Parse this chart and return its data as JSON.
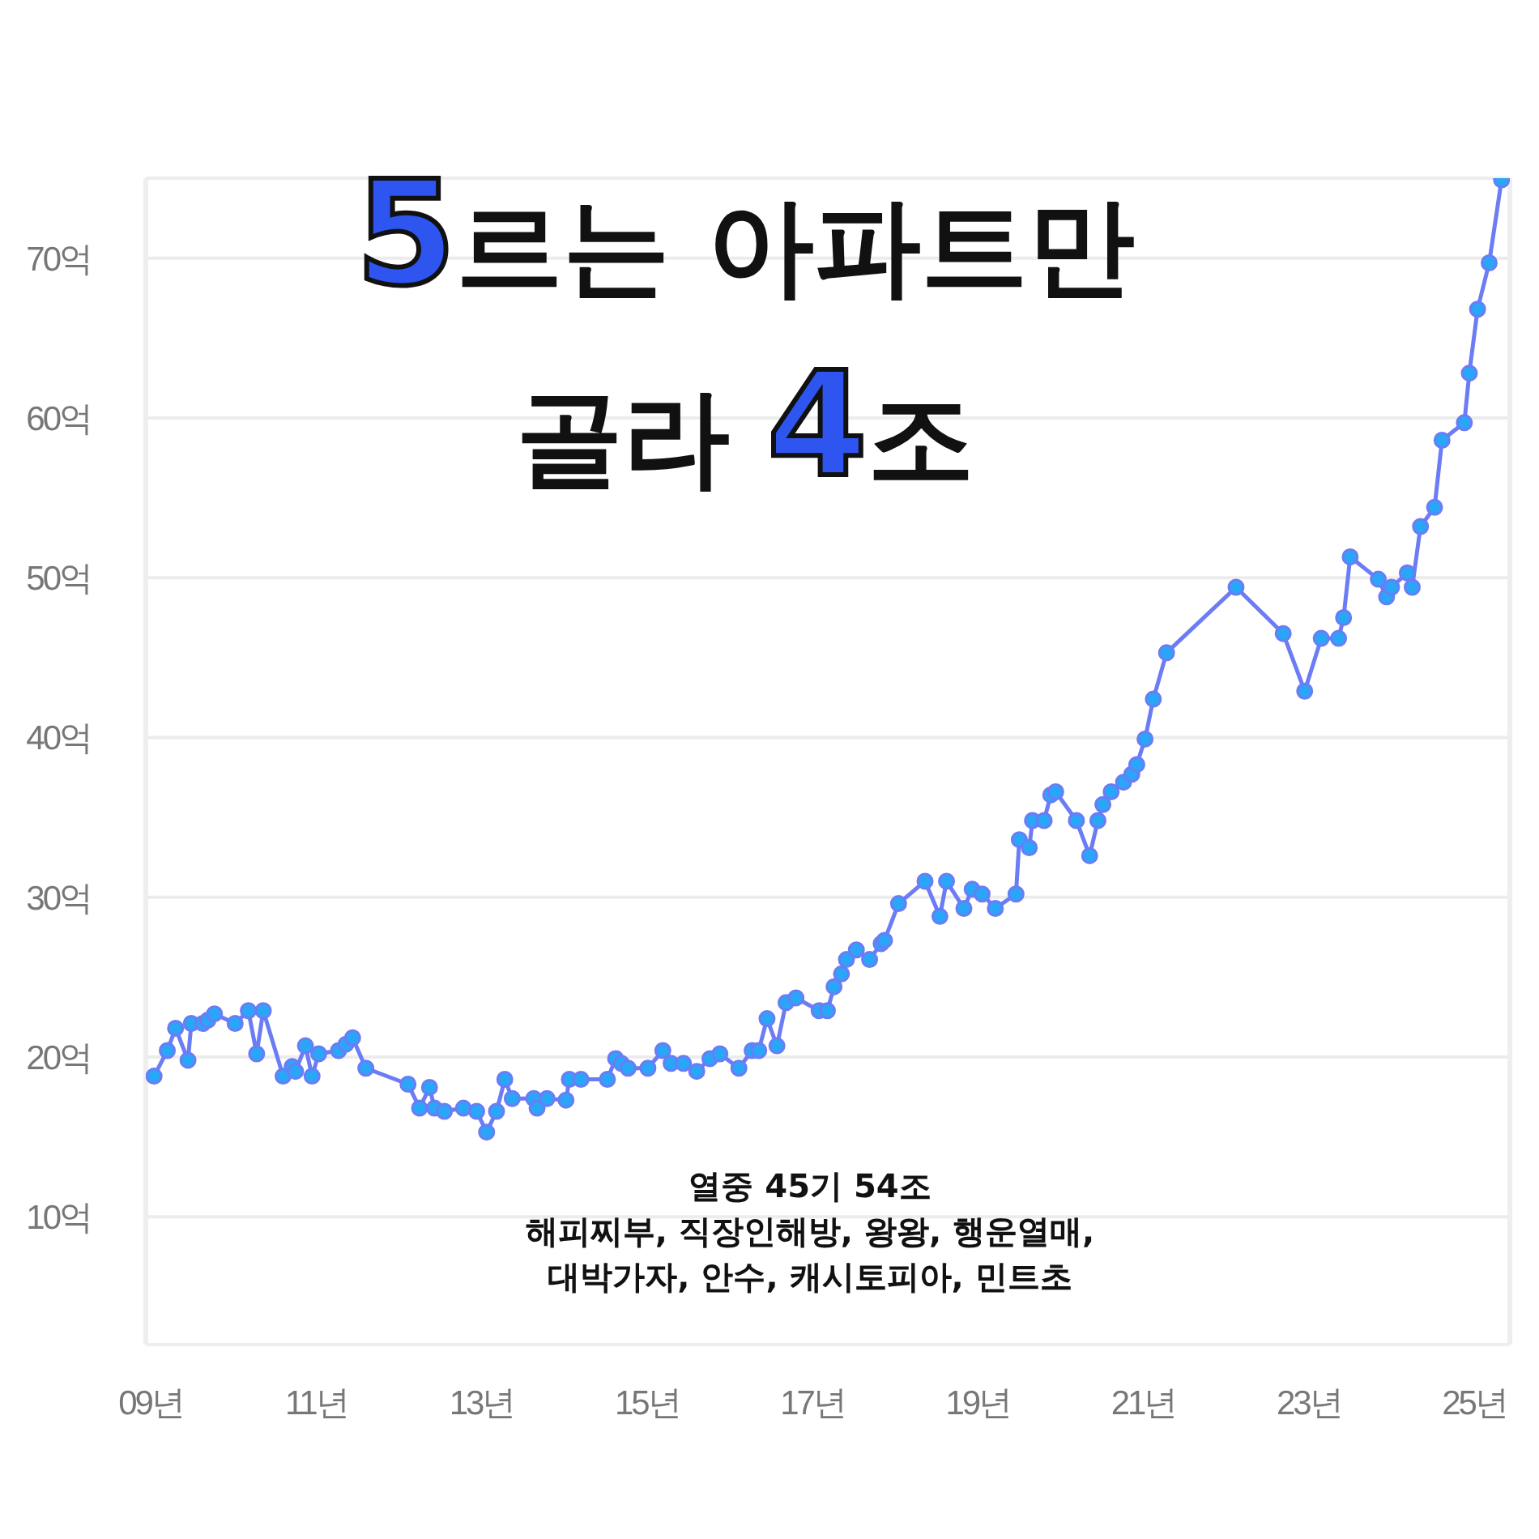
{
  "chart_data": {
    "type": "line",
    "title": "5르는 아파트만",
    "subtitle": "골라 4조",
    "annotations": [
      "열중 45기 54조",
      "해피찌부, 직장인해방, 왕왕, 행운열매,",
      "대박가자, 안수, 캐시토피아, 민트초"
    ],
    "x": [
      9.04,
      9.2,
      9.3,
      9.45,
      9.49,
      9.63,
      9.69,
      9.77,
      10.02,
      10.18,
      10.28,
      10.36,
      10.6,
      10.71,
      10.75,
      10.87,
      10.95,
      11.03,
      11.27,
      11.36,
      11.44,
      11.6,
      12.11,
      12.25,
      12.37,
      12.43,
      12.55,
      12.78,
      12.94,
      13.06,
      13.18,
      13.28,
      13.37,
      13.63,
      13.67,
      13.79,
      14.02,
      14.06,
      14.2,
      14.52,
      14.62,
      14.69,
      14.77,
      15.01,
      15.19,
      15.29,
      15.44,
      15.6,
      15.76,
      15.88,
      16.11,
      16.27,
      16.35,
      16.45,
      16.57,
      16.68,
      16.8,
      17.08,
      17.18,
      17.26,
      17.35,
      17.41,
      17.53,
      17.69,
      17.83,
      17.87,
      18.04,
      18.36,
      18.54,
      18.62,
      18.83,
      18.93,
      19.05,
      19.21,
      19.46,
      19.5,
      19.62,
      19.66,
      19.8,
      19.88,
      19.94,
      20.19,
      20.35,
      20.45,
      20.51,
      20.61,
      20.76,
      20.86,
      20.92,
      21.02,
      21.12,
      21.28,
      22.12,
      22.69,
      22.95,
      23.15,
      23.36,
      23.42,
      23.5,
      23.84,
      23.94,
      24.0,
      24.19,
      24.25,
      24.35,
      24.52,
      24.61,
      24.88,
      24.94,
      25.04,
      25.18,
      25.33
    ],
    "series": [
      {
        "color": "#6b7cf5",
        "values": [
          18.8,
          20.4,
          21.8,
          19.8,
          22.1,
          22.1,
          22.3,
          22.7,
          22.1,
          22.9,
          20.2,
          22.9,
          18.8,
          19.4,
          19.1,
          20.7,
          18.8,
          20.2,
          20.4,
          20.8,
          21.2,
          19.3,
          18.3,
          16.8,
          18.1,
          16.8,
          16.6,
          16.8,
          16.6,
          15.3,
          16.6,
          18.6,
          17.4,
          17.4,
          16.8,
          17.4,
          17.3,
          18.6,
          18.6,
          18.6,
          19.9,
          19.6,
          19.3,
          19.3,
          20.4,
          19.6,
          19.6,
          19.1,
          19.9,
          20.2,
          19.3,
          20.4,
          20.4,
          22.4,
          20.7,
          23.4,
          23.7,
          22.9,
          22.9,
          24.4,
          25.2,
          26.1,
          26.7,
          26.1,
          27.1,
          27.3,
          29.6,
          31.0,
          28.8,
          31.0,
          29.3,
          30.5,
          30.2,
          29.3,
          30.2,
          33.6,
          33.1,
          34.8,
          34.8,
          36.4,
          36.6,
          34.8,
          32.6,
          34.8,
          35.8,
          36.6,
          37.2,
          37.7,
          38.3,
          39.9,
          42.4,
          45.3,
          49.4,
          46.5,
          42.9,
          46.2,
          46.2,
          47.5,
          51.3,
          49.9,
          48.8,
          49.4,
          50.3,
          49.4,
          53.2,
          54.4,
          58.6,
          59.7,
          62.8,
          66.8,
          69.7,
          74.9
        ]
      }
    ],
    "xlim": [
      8.94,
      25.43
    ],
    "ylim": [
      2,
      75
    ],
    "xticks": [
      {
        "value": 9,
        "label": "09년"
      },
      {
        "value": 11,
        "label": "11년"
      },
      {
        "value": 13,
        "label": "13년"
      },
      {
        "value": 15,
        "label": "15년"
      },
      {
        "value": 17,
        "label": "17년"
      },
      {
        "value": 19,
        "label": "19년"
      },
      {
        "value": 21,
        "label": "21년"
      },
      {
        "value": 23,
        "label": "23년"
      },
      {
        "value": 25,
        "label": "25년"
      }
    ],
    "yticks": [
      {
        "value": 10,
        "label": "10억"
      },
      {
        "value": 20,
        "label": "20억"
      },
      {
        "value": 30,
        "label": "30억"
      },
      {
        "value": 40,
        "label": "40억"
      },
      {
        "value": 50,
        "label": "50억"
      },
      {
        "value": 60,
        "label": "60억"
      },
      {
        "value": 70,
        "label": "70억"
      }
    ],
    "grid": "y",
    "marker": "circle",
    "line_style": "solid"
  }
}
